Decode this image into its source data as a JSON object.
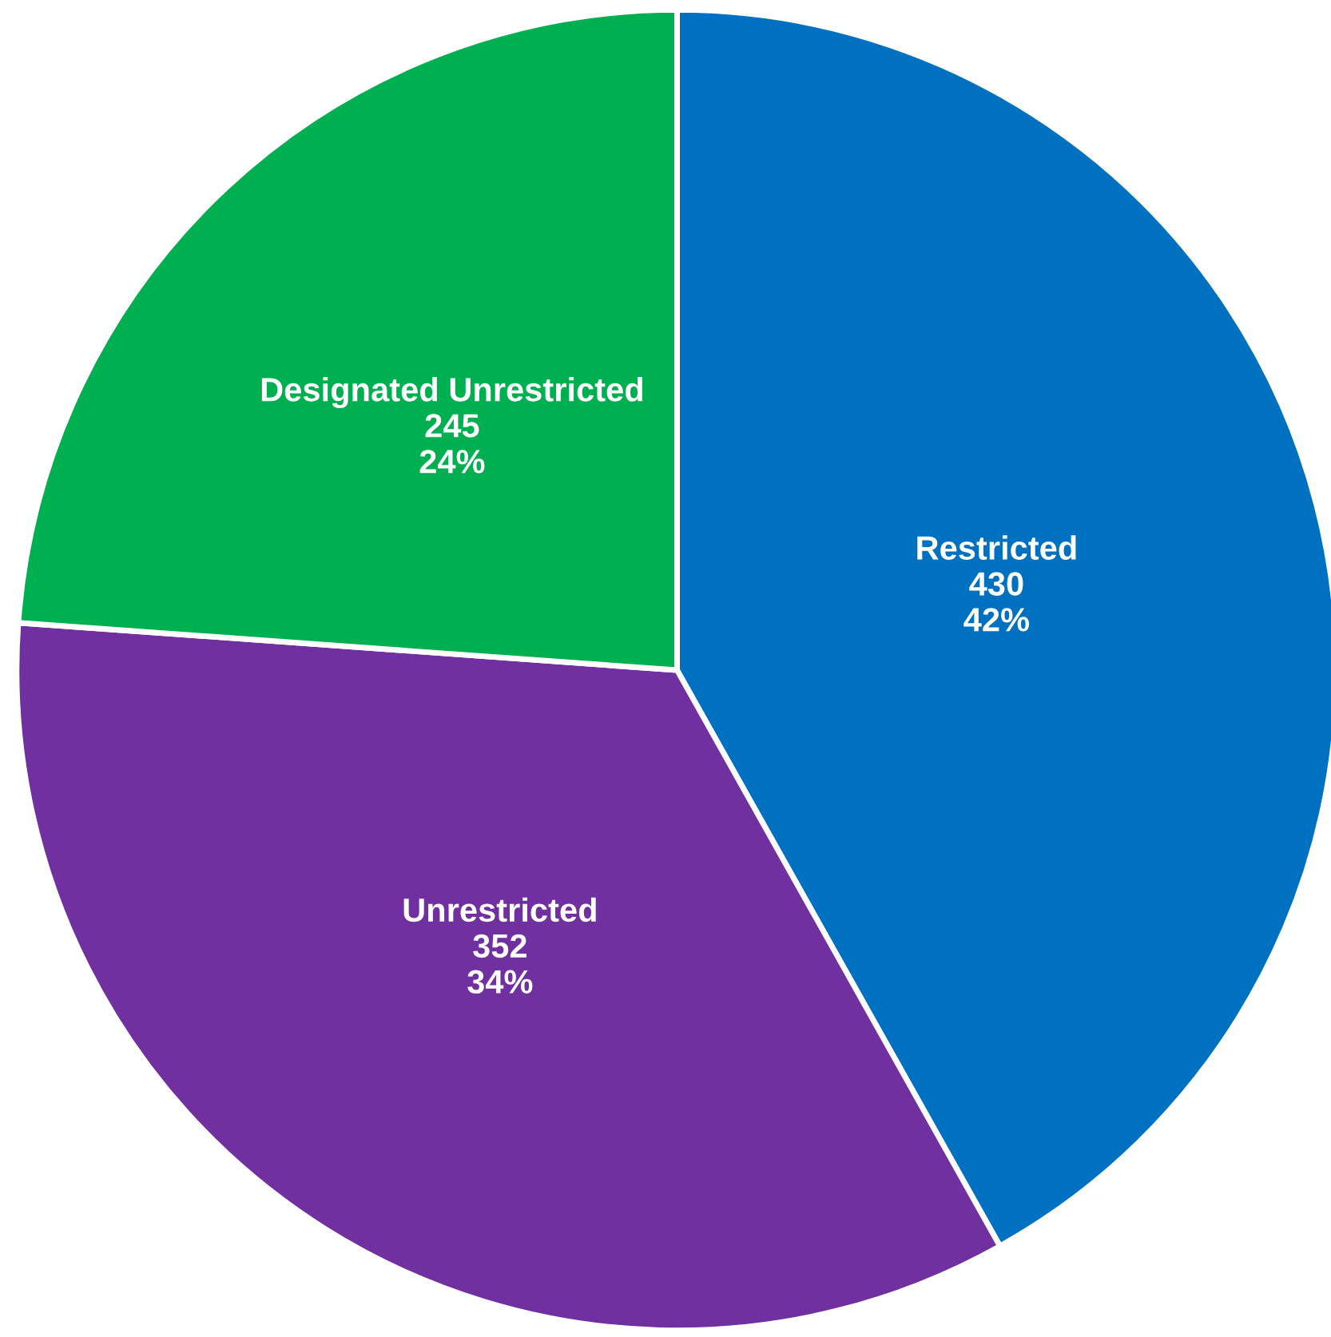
{
  "chart_data": {
    "type": "pie",
    "categories": [
      "Restricted",
      "Unrestricted",
      "Designated Unrestricted"
    ],
    "values": [
      430,
      352,
      245
    ],
    "colors": [
      "#0070c0",
      "#7030a0",
      "#00b050"
    ],
    "value_labels": [
      "430\n42%",
      "352\n34%",
      "245\n24%"
    ],
    "legend": false
  }
}
